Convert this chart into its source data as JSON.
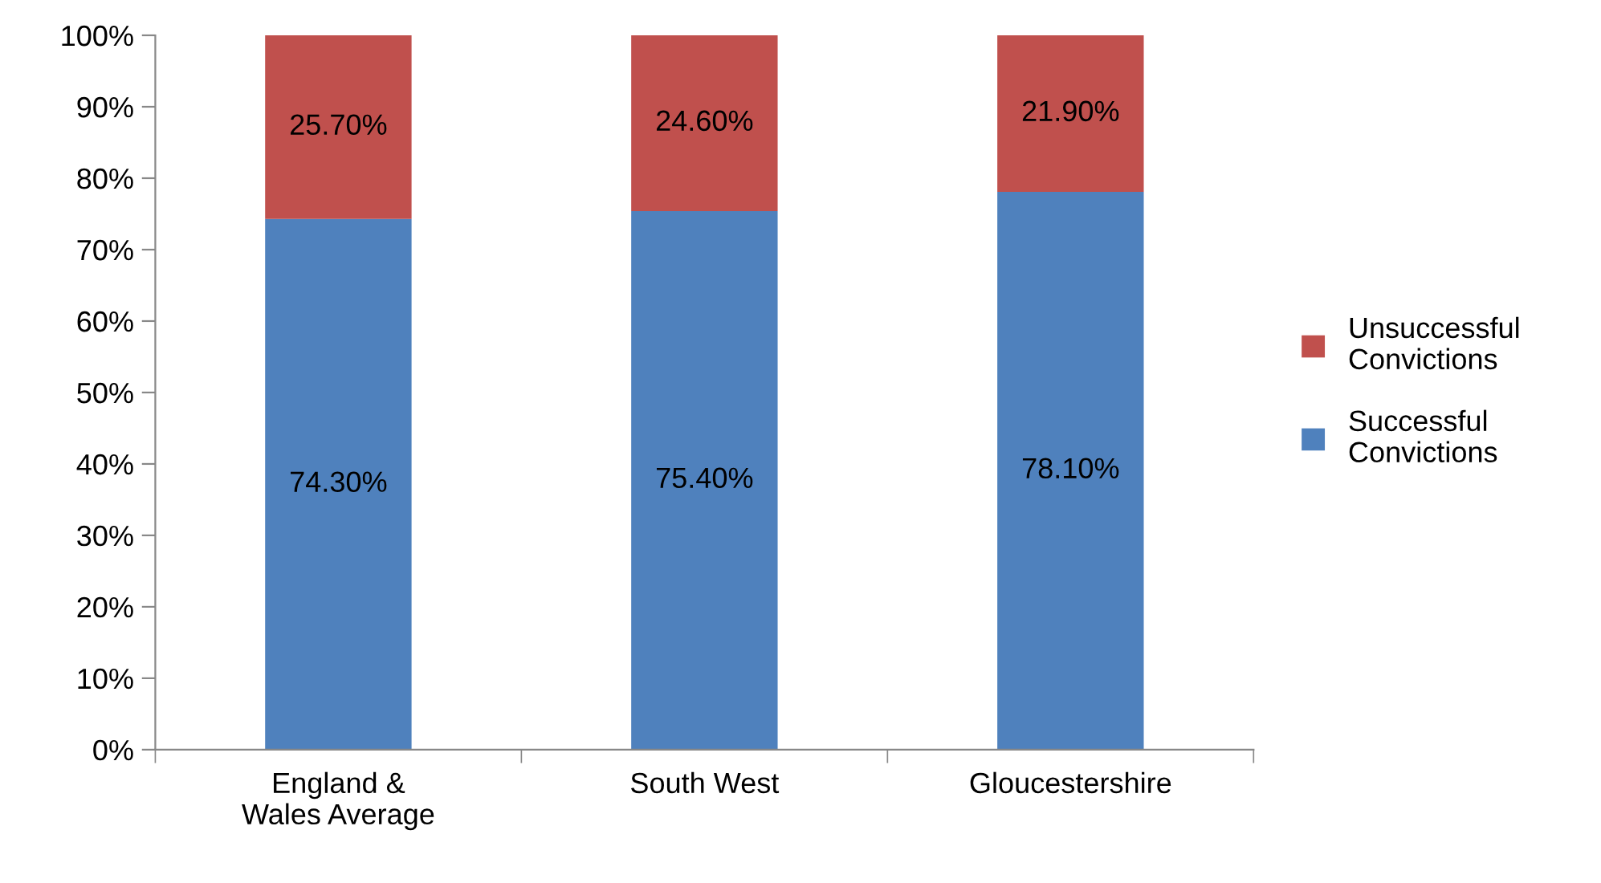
{
  "chart_data": {
    "type": "bar",
    "stacked": true,
    "categories": [
      "England &\nWales Average",
      "South West",
      "Gloucestershire"
    ],
    "series": [
      {
        "name": "Successful\nConvictions",
        "color": "#4f81bd",
        "values": [
          74.3,
          75.4,
          78.1
        ],
        "value_labels": [
          "74.30%",
          "75.40%",
          "78.10%"
        ]
      },
      {
        "name": "Unsuccessful\nConvictions",
        "color": "#c0504d",
        "values": [
          25.7,
          24.6,
          21.9
        ],
        "value_labels": [
          "25.70%",
          "24.60%",
          "21.90%"
        ]
      }
    ],
    "ylim": [
      0,
      100
    ],
    "yticks": [
      {
        "value": 0,
        "label": "0%"
      },
      {
        "value": 10,
        "label": "10%"
      },
      {
        "value": 20,
        "label": "20%"
      },
      {
        "value": 30,
        "label": "30%"
      },
      {
        "value": 40,
        "label": "40%"
      },
      {
        "value": 50,
        "label": "50%"
      },
      {
        "value": 60,
        "label": "60%"
      },
      {
        "value": 70,
        "label": "70%"
      },
      {
        "value": 80,
        "label": "80%"
      },
      {
        "value": 90,
        "label": "90%"
      },
      {
        "value": 100,
        "label": "100%"
      }
    ],
    "grid": false,
    "legend": "right"
  }
}
